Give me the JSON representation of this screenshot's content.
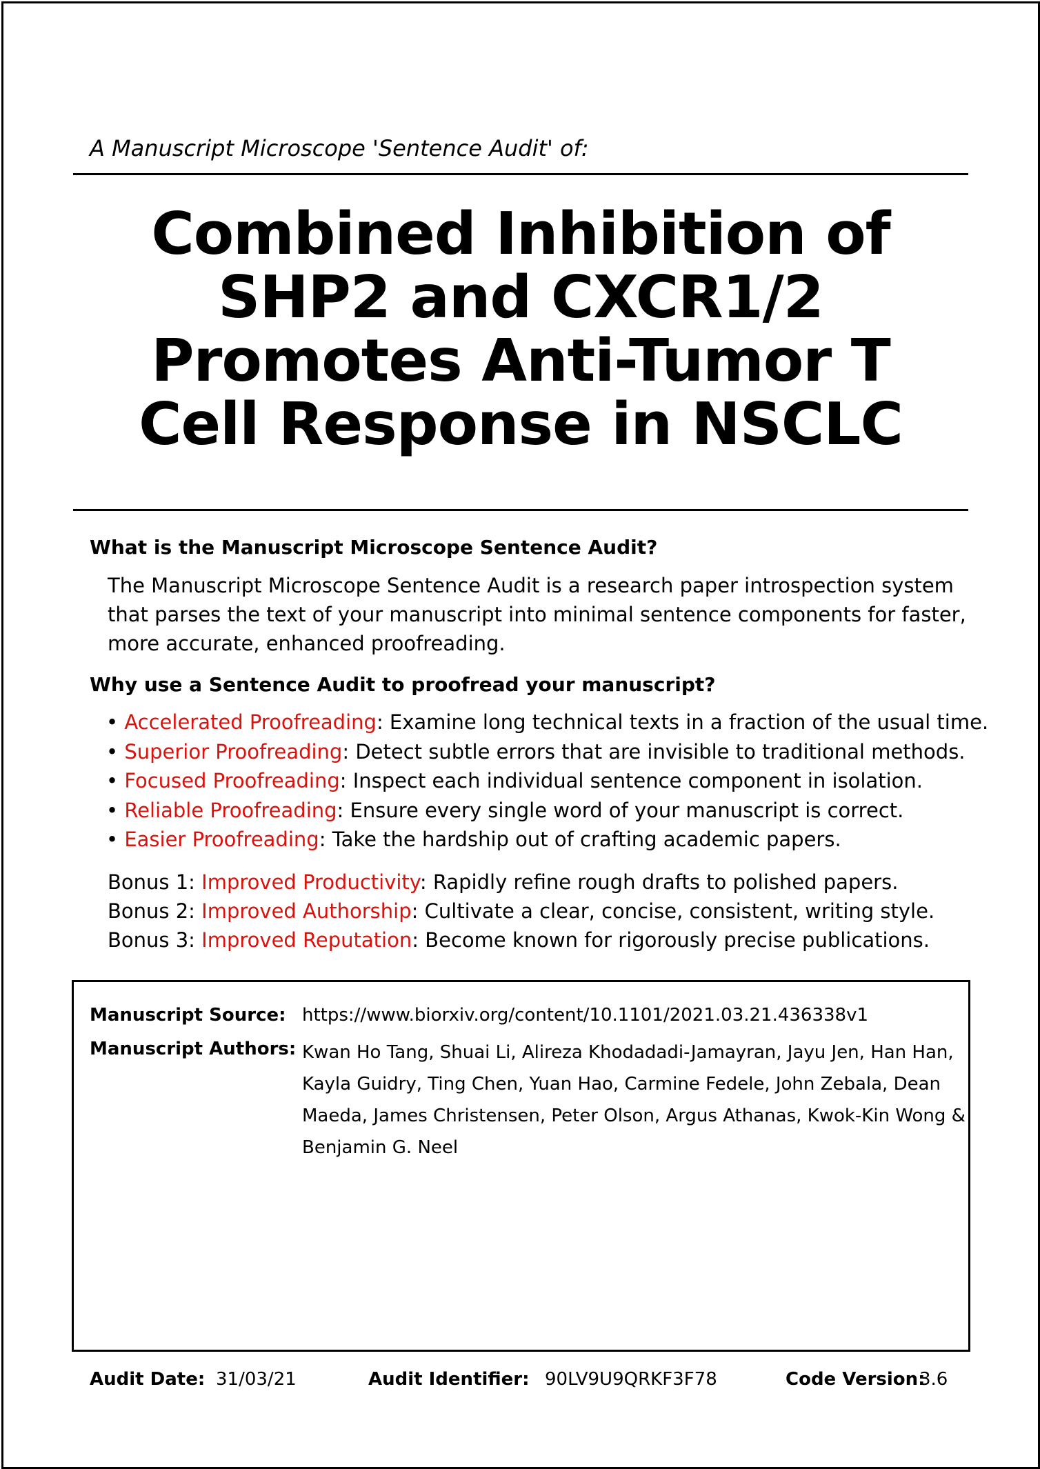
{
  "intro": "A Manuscript Microscope 'Sentence Audit' of:",
  "title_lines": [
    "Combined Inhibition of",
    "SHP2 and CXCR1/2",
    "Promotes Anti-Tumor T",
    "Cell Response in NSCLC"
  ],
  "section1": {
    "heading": "What is the Manuscript Microscope Sentence Audit?",
    "lines": [
      "The Manuscript Microscope Sentence Audit is a research paper introspection system",
      "that parses the text of your manuscript into minimal sentence components for faster,",
      "more accurate, enhanced proofreading."
    ]
  },
  "section2": {
    "heading": "Why use a Sentence Audit to proofread your manuscript?",
    "bullets": [
      {
        "term": "Accelerated Proofreading",
        "text": ": Examine long technical texts in a fraction of the usual time."
      },
      {
        "term": "Superior Proofreading",
        "text": ": Detect subtle errors that are invisible to traditional methods."
      },
      {
        "term": "Focused Proofreading",
        "text": ": Inspect each individual sentence component in isolation."
      },
      {
        "term": "Reliable Proofreading",
        "text": ": Ensure every single word of your manuscript is correct."
      },
      {
        "term": "Easier Proofreading",
        "text": ": Take the hardship out of crafting academic papers."
      }
    ],
    "bonuses": [
      {
        "prefix": "Bonus 1: ",
        "term": "Improved Productivity",
        "text": ": Rapidly refine rough drafts to polished papers."
      },
      {
        "prefix": "Bonus 2: ",
        "term": "Improved Authorship",
        "text": ": Cultivate a clear, concise, consistent, writing style."
      },
      {
        "prefix": "Bonus 3: ",
        "term": "Improved Reputation",
        "text": ": Become known for rigorously precise publications."
      }
    ]
  },
  "manuscript": {
    "source_label": "Manuscript Source:",
    "source_value": "https://www.biorxiv.org/content/10.1101/2021.03.21.436338v1",
    "authors_label": "Manuscript Authors:",
    "authors_lines": [
      "Kwan Ho Tang, Shuai Li, Alireza Khodadadi-Jamayran, Jayu Jen, Han Han,",
      "Kayla Guidry, Ting Chen, Yuan Hao, Carmine Fedele, John Zebala, Dean",
      "Maeda, James Christensen, Peter Olson, Argus Athanas, Kwok-Kin Wong &",
      "Benjamin G. Neel"
    ]
  },
  "footer": {
    "date_label": "Audit Date:",
    "date_value": "31/03/21",
    "id_label": "Audit Identifier:",
    "id_value": "90LV9U9QRKF3F78",
    "version_label": "Code Version:",
    "version_value": "3.6"
  },
  "colors": {
    "accent": "#d8130d",
    "text": "#000000",
    "background": "#ffffff"
  }
}
